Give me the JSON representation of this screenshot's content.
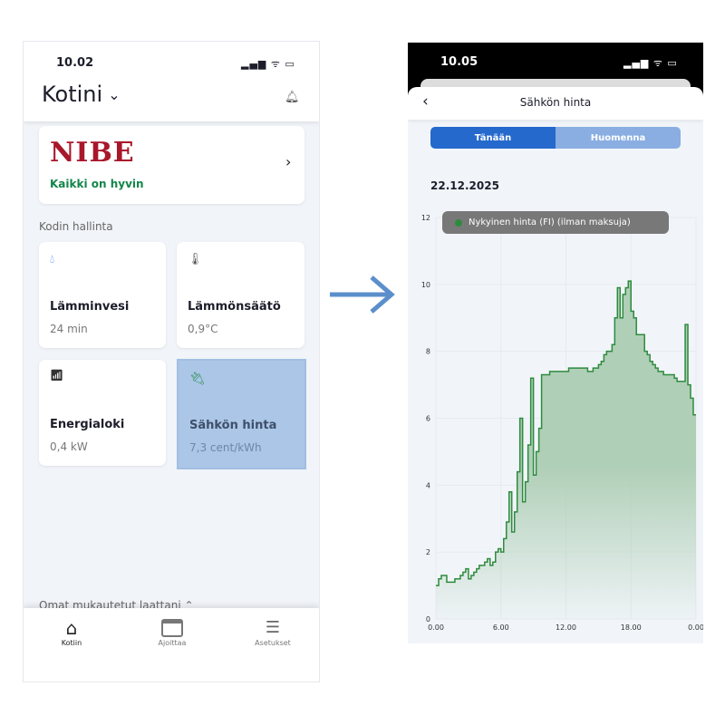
{
  "left_screen": {
    "status_time": "10.02",
    "home_title": "Kotini",
    "brand": {
      "logo_text": "NIBE",
      "status": "Kaikki on hyvin",
      "logo_color": "#a8172b",
      "status_color": "#13854a"
    },
    "section_title": "Kodin hallinta",
    "tiles": [
      {
        "title": "Lämminvesi",
        "value": "24 min",
        "icon": "water-drop-icon"
      },
      {
        "title": "Lämmönsäätö",
        "value": "0,9°C",
        "icon": "thermometer-icon"
      },
      {
        "title": "Energialoki",
        "value": "0,4 kW",
        "icon": "energy-chart-icon"
      },
      {
        "title": "Sähkön hinta",
        "value": "7,3 cent/kWh",
        "icon": "plug-icon",
        "highlighted": true
      }
    ],
    "custom_section": "Omat mukautetut laattani",
    "nav": [
      {
        "label": "Kotiin",
        "icon": "home-icon",
        "active": true
      },
      {
        "label": "Ajoittaa",
        "icon": "calendar-icon"
      },
      {
        "label": "Asetukset",
        "icon": "sliders-icon"
      }
    ]
  },
  "right_screen": {
    "status_time": "10.05",
    "title": "Sähkön hinta",
    "tabs": [
      {
        "label": "Tänään",
        "active": true
      },
      {
        "label": "Huomenna"
      }
    ],
    "date": "22.12.2025"
  },
  "chart_data": {
    "type": "area",
    "step": true,
    "legend": "Nykyinen hinta (FI) (ilman maksuja)",
    "legend_placement": "top",
    "x_interval_minutes": 15,
    "x_tick_labels": [
      "0.00",
      "6.00",
      "12.00",
      "18.00",
      "0.00"
    ],
    "y_ticks": [
      0,
      2,
      4,
      6,
      8,
      10,
      12
    ],
    "ylim": [
      0,
      12
    ],
    "grid": true,
    "color": "#2e8b3e",
    "values": [
      1.0,
      1.2,
      1.3,
      1.3,
      1.1,
      1.1,
      1.1,
      1.2,
      1.2,
      1.3,
      1.4,
      1.5,
      1.2,
      1.3,
      1.4,
      1.5,
      1.6,
      1.6,
      1.7,
      1.8,
      1.6,
      1.7,
      2.0,
      2.1,
      2.0,
      2.4,
      2.9,
      3.8,
      2.6,
      3.2,
      4.4,
      6.0,
      3.5,
      4.1,
      5.2,
      7.2,
      4.3,
      5.0,
      5.7,
      7.3,
      7.3,
      7.3,
      7.4,
      7.4,
      7.4,
      7.4,
      7.4,
      7.4,
      7.4,
      7.5,
      7.5,
      7.5,
      7.5,
      7.5,
      7.5,
      7.5,
      7.4,
      7.4,
      7.5,
      7.5,
      7.6,
      7.7,
      7.9,
      8.0,
      8.0,
      8.2,
      9.0,
      9.9,
      9.0,
      9.7,
      9.9,
      10.1,
      9.2,
      9.0,
      8.5,
      8.5,
      8.5,
      8.0,
      7.9,
      7.7,
      7.6,
      7.5,
      7.4,
      7.4,
      7.3,
      7.3,
      7.3,
      7.3,
      7.2,
      7.1,
      7.1,
      7.1,
      8.8,
      7.0,
      6.6,
      6.1
    ]
  }
}
